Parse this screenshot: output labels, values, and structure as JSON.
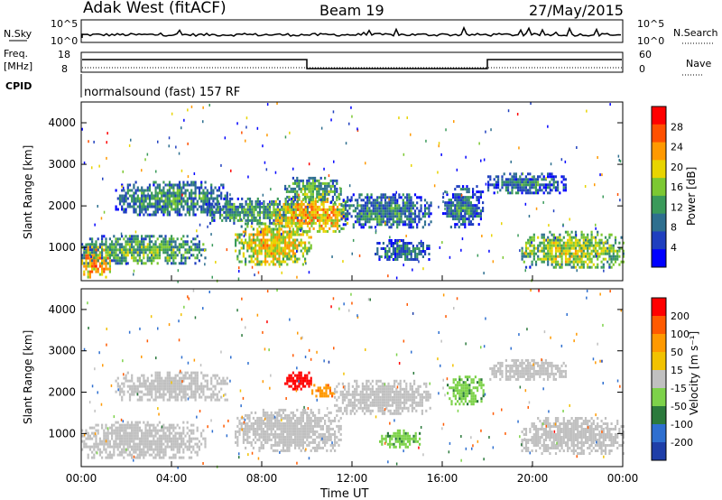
{
  "header": {
    "station": "Adak West (fitACF)",
    "beam": "Beam 19",
    "date": "27/May/2015"
  },
  "side_labels": {
    "nsky": "N.Sky",
    "nsearch": "N.Search",
    "freq_line1": "Freq.",
    "freq_line2": "[MHz]",
    "cpid": "CPID",
    "nave": "Nave"
  },
  "noise_panel": {
    "left_ticks": [
      "10^5",
      "10^0"
    ],
    "right_ticks": [
      "10^5",
      "10^0"
    ]
  },
  "freq_panel": {
    "left_ticks": [
      "18",
      "8"
    ],
    "right_ticks": [
      "60",
      "0"
    ]
  },
  "cpid_text": "normalsound (fast) 157 RF",
  "colors": {
    "power_scale": [
      "#0000ff",
      "#1f3fbf",
      "#2e6f8f",
      "#3a9a5a",
      "#7cc832",
      "#e8d400",
      "#ff9900",
      "#ff5000",
      "#ff0000"
    ],
    "velocity_scale": [
      "#1e3ea8",
      "#2e6fd0",
      "#2b7a3c",
      "#7dd24a",
      "#c0c0c0",
      "#f2c200",
      "#ff9900",
      "#ff5a00",
      "#ff0000"
    ],
    "ground_scatter": "#c0c0c0"
  },
  "chart_data": [
    {
      "type": "heatmap",
      "panel": "power",
      "ylabel": "Slant Range [km]",
      "ylim": [
        200,
        4500
      ],
      "y_ticks": [
        "1000",
        "2000",
        "3000",
        "4000"
      ],
      "x_ticks": [
        "00:00",
        "04:00",
        "08:00",
        "12:00",
        "16:00",
        "20:00",
        "00:00"
      ],
      "colorbar_label": "Power [dB]",
      "colorbar_ticks": [
        "28",
        "24",
        "20",
        "16",
        "12",
        "8",
        "4"
      ],
      "regions": [
        {
          "t0": 0.0,
          "t1": 1.3,
          "r0": 300,
          "r1": 1100,
          "level": 0.75
        },
        {
          "t0": 0.0,
          "t1": 5.5,
          "r0": 600,
          "r1": 1300,
          "level": 0.45
        },
        {
          "t0": 1.5,
          "t1": 6.5,
          "r0": 1800,
          "r1": 2600,
          "level": 0.35
        },
        {
          "t0": 5.5,
          "t1": 10.0,
          "r0": 1600,
          "r1": 2200,
          "level": 0.4
        },
        {
          "t0": 6.8,
          "t1": 10.2,
          "r0": 600,
          "r1": 1600,
          "level": 0.65
        },
        {
          "t0": 8.5,
          "t1": 11.8,
          "r0": 1400,
          "r1": 2200,
          "level": 0.7
        },
        {
          "t0": 9.0,
          "t1": 11.5,
          "r0": 2100,
          "r1": 2700,
          "level": 0.45
        },
        {
          "t0": 11.5,
          "t1": 15.5,
          "r0": 1500,
          "r1": 2300,
          "level": 0.35
        },
        {
          "t0": 13.0,
          "t1": 15.5,
          "r0": 700,
          "r1": 1200,
          "level": 0.3
        },
        {
          "t0": 16.0,
          "t1": 17.8,
          "r0": 1500,
          "r1": 2500,
          "level": 0.3
        },
        {
          "t0": 18.0,
          "t1": 21.5,
          "r0": 2300,
          "r1": 2800,
          "level": 0.3
        },
        {
          "t0": 19.5,
          "t1": 24.0,
          "r0": 500,
          "r1": 1400,
          "level": 0.55
        }
      ]
    },
    {
      "type": "heatmap",
      "panel": "velocity",
      "ylabel": "Slant Range [km]",
      "xlabel": "Time UT",
      "ylim": [
        200,
        4500
      ],
      "y_ticks": [
        "1000",
        "2000",
        "3000",
        "4000"
      ],
      "x_ticks": [
        "00:00",
        "04:00",
        "08:00",
        "12:00",
        "16:00",
        "20:00",
        "00:00"
      ],
      "colorbar_label": "Velocity [m s⁻¹]",
      "colorbar_ticks": [
        "200",
        "100",
        "50",
        "15",
        "-15",
        "-50",
        "-100",
        "-200"
      ],
      "regions": [
        {
          "t0": 0.0,
          "t1": 5.5,
          "r0": 400,
          "r1": 1300,
          "vel": 0
        },
        {
          "t0": 1.5,
          "t1": 6.5,
          "r0": 1800,
          "r1": 2500,
          "vel": 0
        },
        {
          "t0": 6.8,
          "t1": 11.5,
          "r0": 600,
          "r1": 1600,
          "vel": 0
        },
        {
          "t0": 9.0,
          "t1": 10.2,
          "r0": 2100,
          "r1": 2500,
          "vel": -230
        },
        {
          "t0": 10.2,
          "t1": 11.2,
          "r0": 1900,
          "r1": 2200,
          "vel": -90
        },
        {
          "t0": 11.2,
          "t1": 15.5,
          "r0": 1500,
          "r1": 2300,
          "vel": 0
        },
        {
          "t0": 13.2,
          "t1": 15.0,
          "r0": 700,
          "r1": 1100,
          "vel": 40
        },
        {
          "t0": 16.2,
          "t1": 17.8,
          "r0": 1700,
          "r1": 2400,
          "vel": 40
        },
        {
          "t0": 18.0,
          "t1": 21.5,
          "r0": 2300,
          "r1": 2800,
          "vel": 0
        },
        {
          "t0": 19.5,
          "t1": 24.0,
          "r0": 500,
          "r1": 1400,
          "vel": 0
        }
      ]
    }
  ]
}
